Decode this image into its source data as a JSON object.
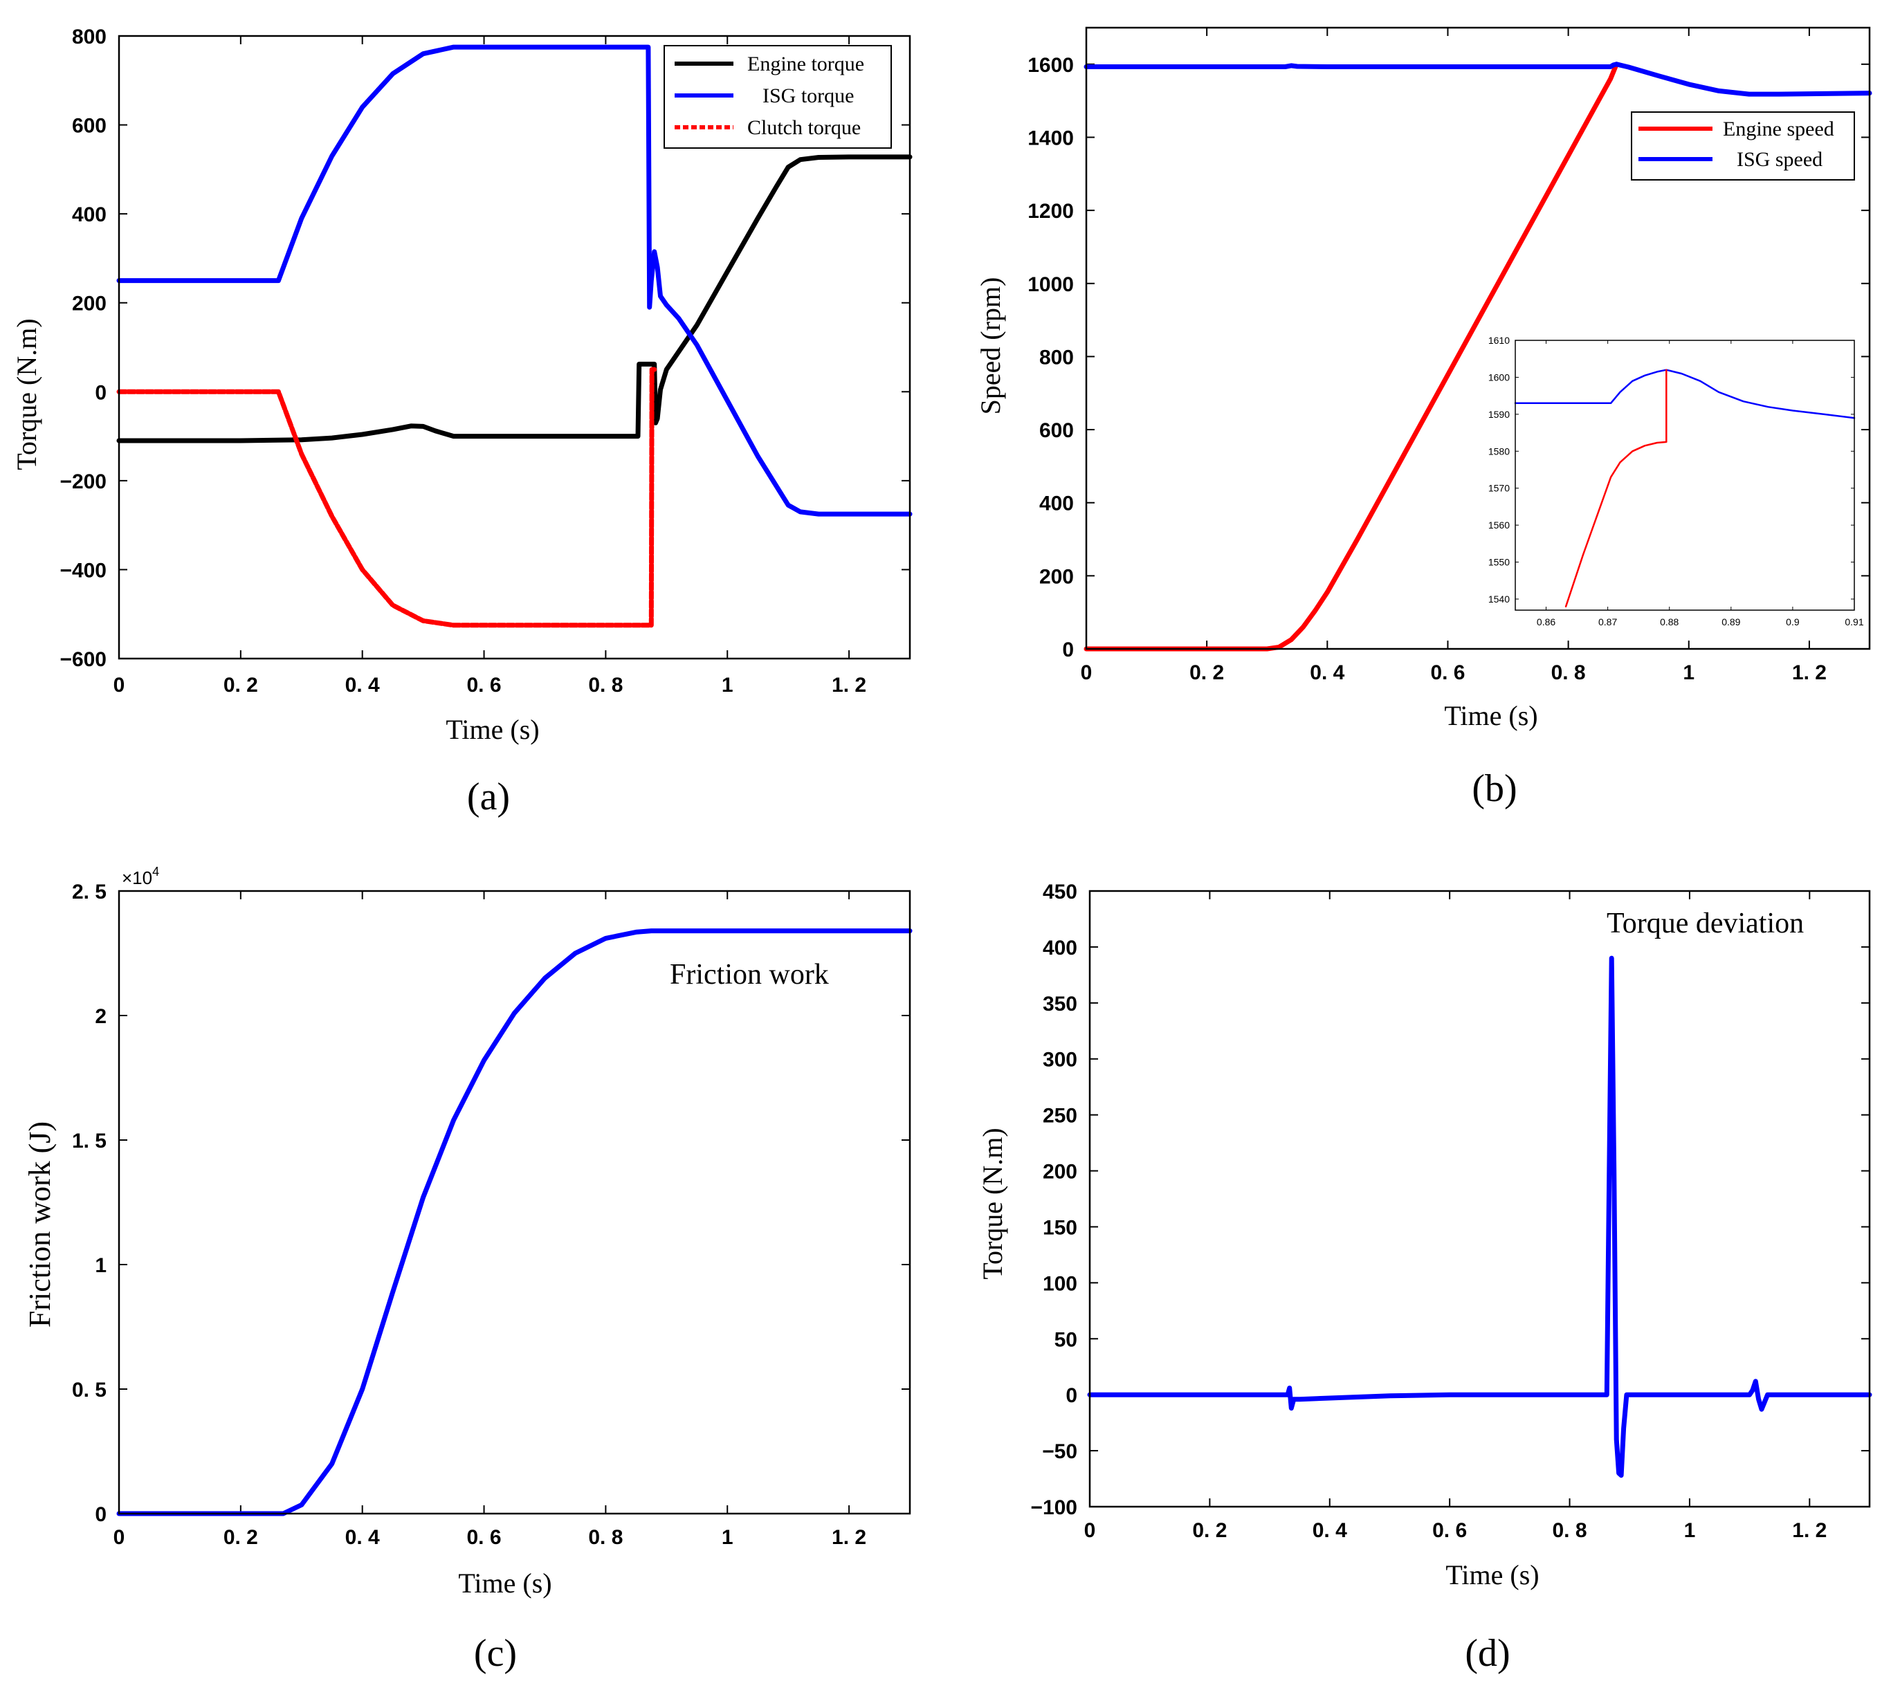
{
  "chart_data": [
    {
      "panel": "a",
      "caption": "(a)",
      "type": "line",
      "xlabel": "Time  (s)",
      "ylabel": "Torque (N.m)",
      "xlim": [
        0,
        1.3
      ],
      "ylim": [
        -600,
        800
      ],
      "xticks": [
        0,
        0.2,
        0.4,
        0.6,
        0.8,
        1,
        1.2
      ],
      "xtick_labels": [
        "0",
        "0. 2",
        "0. 4",
        "0. 6",
        "0. 8",
        "1",
        "1. 2"
      ],
      "yticks": [
        -600,
        -400,
        -200,
        0,
        200,
        400,
        600,
        800
      ],
      "ytick_labels": [
        "−600",
        "−400",
        "−200",
        "0",
        "200",
        "400",
        "600",
        "800"
      ],
      "legend_position": "top-right",
      "series": [
        {
          "name": "Engine torque",
          "color": "#000000",
          "dashed": false,
          "x": [
            0,
            0.1,
            0.2,
            0.3,
            0.35,
            0.4,
            0.45,
            0.48,
            0.5,
            0.52,
            0.55,
            0.6,
            0.7,
            0.8,
            0.853,
            0.855,
            0.88,
            0.882,
            0.885,
            0.89,
            0.9,
            0.95,
            1.0,
            1.05,
            1.08,
            1.1,
            1.12,
            1.15,
            1.2,
            1.3
          ],
          "y": [
            -110,
            -110,
            -110,
            -108,
            -104,
            -96,
            -85,
            -77,
            -78,
            -88,
            -100,
            -100,
            -100,
            -100,
            -100,
            62,
            62,
            -70,
            -60,
            5,
            50,
            150,
            270,
            390,
            460,
            505,
            522,
            527,
            528,
            528
          ]
        },
        {
          "name": "ISG torque",
          "color": "#0000ff",
          "dashed": false,
          "x": [
            0,
            0.1,
            0.2,
            0.262,
            0.3,
            0.35,
            0.4,
            0.45,
            0.5,
            0.55,
            0.6,
            0.7,
            0.8,
            0.87,
            0.872,
            0.875,
            0.88,
            0.885,
            0.89,
            0.895,
            0.9,
            0.92,
            0.95,
            1.0,
            1.05,
            1.1,
            1.12,
            1.15,
            1.2,
            1.3
          ],
          "y": [
            250,
            250,
            250,
            250,
            390,
            530,
            640,
            715,
            760,
            775,
            775,
            775,
            775,
            775,
            190,
            250,
            315,
            280,
            215,
            205,
            195,
            165,
            105,
            -20,
            -145,
            -255,
            -270,
            -275,
            -275,
            -275
          ]
        },
        {
          "name": "Clutch torque",
          "color": "#ff0000",
          "dashed": true,
          "x": [
            0,
            0.1,
            0.2,
            0.262,
            0.3,
            0.35,
            0.4,
            0.45,
            0.5,
            0.55,
            0.6,
            0.7,
            0.8,
            0.875,
            0.876,
            0.88
          ],
          "y": [
            0,
            0,
            0,
            0,
            -140,
            -280,
            -400,
            -480,
            -515,
            -525,
            -525,
            -525,
            -525,
            -525,
            50,
            50
          ]
        }
      ]
    },
    {
      "panel": "b",
      "caption": "(b)",
      "type": "line",
      "xlabel": "Time  (s)",
      "ylabel": "Speed  (rpm)",
      "xlim": [
        0,
        1.3
      ],
      "ylim": [
        0,
        1700
      ],
      "xticks": [
        0,
        0.2,
        0.4,
        0.6,
        0.8,
        1,
        1.2
      ],
      "xtick_labels": [
        "0",
        "0. 2",
        "0. 4",
        "0. 6",
        "0. 8",
        "1",
        "1. 2"
      ],
      "yticks": [
        0,
        200,
        400,
        600,
        800,
        1000,
        1200,
        1400,
        1600
      ],
      "ytick_labels": [
        "0",
        "200",
        "400",
        "600",
        "800",
        "1000",
        "1200",
        "1400",
        "1600"
      ],
      "legend_position": "upper-right",
      "series": [
        {
          "name": "Engine speed",
          "color": "#ff0000",
          "x": [
            0,
            0.1,
            0.2,
            0.3,
            0.32,
            0.34,
            0.36,
            0.38,
            0.4,
            0.45,
            0.5,
            0.6,
            0.7,
            0.8,
            0.85,
            0.87,
            0.88
          ],
          "y": [
            0,
            0,
            0,
            0,
            5,
            25,
            60,
            105,
            155,
            300,
            450,
            750,
            1050,
            1350,
            1500,
            1560,
            1600
          ]
        },
        {
          "name": "ISG speed",
          "color": "#0000ff",
          "x": [
            0,
            0.1,
            0.2,
            0.3,
            0.33,
            0.34,
            0.35,
            0.4,
            0.5,
            0.6,
            0.7,
            0.8,
            0.87,
            0.875,
            0.88,
            0.9,
            0.95,
            1.0,
            1.05,
            1.1,
            1.15,
            1.2,
            1.3
          ],
          "y": [
            1593,
            1593,
            1593,
            1593,
            1593,
            1596,
            1594,
            1593,
            1593,
            1593,
            1593,
            1593,
            1593,
            1598,
            1600,
            1592,
            1568,
            1545,
            1527,
            1518,
            1518,
            1519,
            1521
          ]
        }
      ],
      "inset": {
        "type": "line",
        "xlim": [
          0.855,
          0.91
        ],
        "ylim": [
          1537,
          1610
        ],
        "xticks": [
          0.86,
          0.87,
          0.88,
          0.89,
          0.9,
          0.91
        ],
        "xtick_labels": [
          "0.86",
          "0.87",
          "0.88",
          "0.89",
          "0.9",
          "0.91"
        ],
        "yticks": [
          1540,
          1550,
          1560,
          1570,
          1580,
          1590,
          1600,
          1610
        ],
        "ytick_labels": [
          "1540",
          "1550",
          "1560",
          "1570",
          "1580",
          "1590",
          "1600",
          "1610"
        ],
        "series": [
          {
            "name": "ISG speed",
            "color": "#0000ff",
            "x": [
              0.855,
              0.86,
              0.865,
              0.8705,
              0.872,
              0.874,
              0.876,
              0.878,
              0.8795,
              0.882,
              0.885,
              0.888,
              0.892,
              0.896,
              0.9,
              0.905,
              0.91
            ],
            "y": [
              1593,
              1593,
              1593,
              1593,
              1596,
              1599,
              1600.5,
              1601.5,
              1602,
              1601,
              1599,
              1596,
              1593.5,
              1592,
              1591,
              1590,
              1589
            ]
          },
          {
            "name": "Engine speed",
            "color": "#ff0000",
            "x": [
              0.8632,
              0.866,
              0.8705,
              0.872,
              0.874,
              0.876,
              0.878,
              0.8795,
              0.8795,
              0.8795
            ],
            "y": [
              1538,
              1552,
              1573,
              1577,
              1580,
              1581.5,
              1582.3,
              1582.5,
              1582.5,
              1602
            ]
          }
        ]
      }
    },
    {
      "panel": "c",
      "caption": "(c)",
      "type": "line",
      "xlabel": "Time  (s)",
      "ylabel": "Friction work (J)",
      "xlim": [
        0,
        1.3
      ],
      "ylim": [
        0,
        25000
      ],
      "xticks": [
        0,
        0.2,
        0.4,
        0.6,
        0.8,
        1,
        1.2
      ],
      "xtick_labels": [
        "0",
        "0. 2",
        "0. 4",
        "0. 6",
        "0. 8",
        "1",
        "1. 2"
      ],
      "yticks": [
        0,
        5000,
        10000,
        15000,
        20000,
        25000
      ],
      "ytick_labels": [
        "0",
        "0. 5",
        "1",
        "1. 5",
        "2",
        "2. 5"
      ],
      "exponent_label": "×10",
      "exponent_power": "4",
      "annotation": "Friction work",
      "series": [
        {
          "name": "Friction work",
          "color": "#0000ff",
          "x": [
            0,
            0.1,
            0.2,
            0.27,
            0.3,
            0.35,
            0.4,
            0.45,
            0.5,
            0.55,
            0.6,
            0.65,
            0.7,
            0.75,
            0.8,
            0.85,
            0.875,
            0.9,
            1.0,
            1.1,
            1.2,
            1.3
          ],
          "y": [
            0,
            0,
            0,
            0,
            350,
            2000,
            5000,
            8900,
            12700,
            15800,
            18200,
            20100,
            21500,
            22500,
            23100,
            23350,
            23400,
            23400,
            23400,
            23400,
            23400,
            23400
          ]
        }
      ]
    },
    {
      "panel": "d",
      "caption": "(d)",
      "type": "line",
      "xlabel": "Time  (s)",
      "ylabel": "Torque (N.m)",
      "xlim": [
        0,
        1.3
      ],
      "ylim": [
        -100,
        450
      ],
      "xticks": [
        0,
        0.2,
        0.4,
        0.6,
        0.8,
        1,
        1.2
      ],
      "xtick_labels": [
        "0",
        "0. 2",
        "0. 4",
        "0. 6",
        "0. 8",
        "1",
        "1. 2"
      ],
      "yticks": [
        -100,
        -50,
        0,
        50,
        100,
        150,
        200,
        250,
        300,
        350,
        400,
        450
      ],
      "ytick_labels": [
        "−100",
        "−50",
        "0",
        "50",
        "100",
        "150",
        "200",
        "250",
        "300",
        "350",
        "400",
        "450"
      ],
      "annotation": "Torque deviation",
      "series": [
        {
          "name": "Torque deviation",
          "color": "#0000ff",
          "x": [
            0,
            0.1,
            0.2,
            0.3,
            0.33,
            0.333,
            0.336,
            0.34,
            0.35,
            0.4,
            0.5,
            0.6,
            0.7,
            0.8,
            0.862,
            0.866,
            0.87,
            0.874,
            0.878,
            0.882,
            0.886,
            0.89,
            0.895,
            0.9,
            1.0,
            1.1,
            1.105,
            1.11,
            1.115,
            1.12,
            1.13,
            1.2,
            1.3
          ],
          "y": [
            0,
            0,
            0,
            0,
            0,
            6,
            -12,
            -4,
            -4,
            -3,
            -1,
            0,
            0,
            0,
            0,
            200,
            390,
            200,
            -40,
            -70,
            -72,
            -30,
            0,
            0,
            0,
            0,
            4,
            12,
            -4,
            -13,
            0,
            0,
            0
          ]
        }
      ]
    }
  ]
}
